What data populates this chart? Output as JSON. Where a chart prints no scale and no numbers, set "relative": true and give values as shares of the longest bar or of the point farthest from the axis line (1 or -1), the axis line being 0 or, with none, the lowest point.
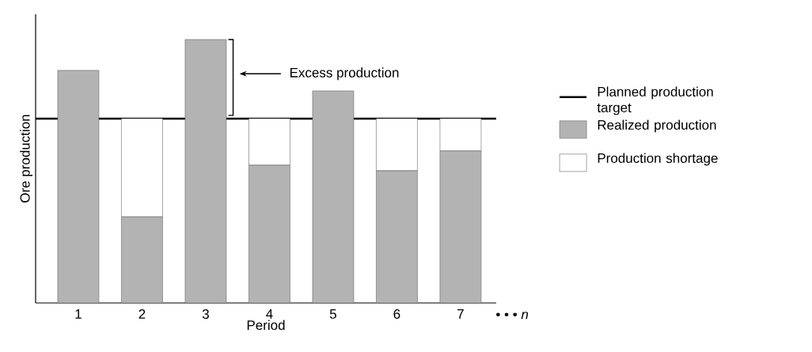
{
  "chart_data": {
    "type": "bar",
    "relative": true,
    "stacked": true,
    "xlabel": "Period",
    "ylabel": "Ore production",
    "categories": [
      "1",
      "2",
      "3",
      "4",
      "5",
      "6",
      "7"
    ],
    "series": [
      {
        "name": "Realized production",
        "color": "#b3b3b3",
        "values": [
          0.883,
          0.327,
          1,
          0.523,
          0.805,
          0.502,
          0.577
        ]
      },
      {
        "name": "Production shortage",
        "color": "#ffffff",
        "values": [
          null,
          0.373,
          null,
          0.177,
          null,
          0.198,
          0.123
        ]
      }
    ],
    "ref_lines": [
      {
        "axis": "y",
        "value": 0.7,
        "label": "Planned production target",
        "color": "#000000"
      }
    ],
    "annotations": [
      "Excess production",
      "• • •   *n*"
    ],
    "legend": "right"
  }
}
